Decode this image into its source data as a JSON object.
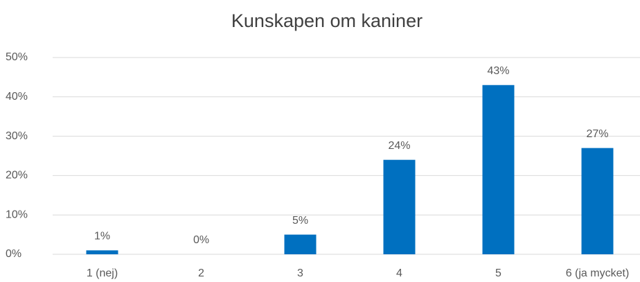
{
  "chart_data": {
    "type": "bar",
    "title": "Kunskapen om kaniner",
    "categories": [
      "1 (nej)",
      "2",
      "3",
      "4",
      "5",
      "6 (ja mycket)"
    ],
    "values": [
      1,
      0,
      5,
      24,
      43,
      27
    ],
    "value_labels": [
      "1%",
      "0%",
      "5%",
      "24%",
      "43%",
      "27%"
    ],
    "color": "#0070c0",
    "ylim": [
      0,
      50
    ],
    "yticks": [
      {
        "value": 0,
        "label": "0%"
      },
      {
        "value": 10,
        "label": "10%"
      },
      {
        "value": 20,
        "label": "20%"
      },
      {
        "value": 30,
        "label": "30%"
      },
      {
        "value": 40,
        "label": "40%"
      },
      {
        "value": 50,
        "label": "50%"
      }
    ],
    "grid": true
  }
}
